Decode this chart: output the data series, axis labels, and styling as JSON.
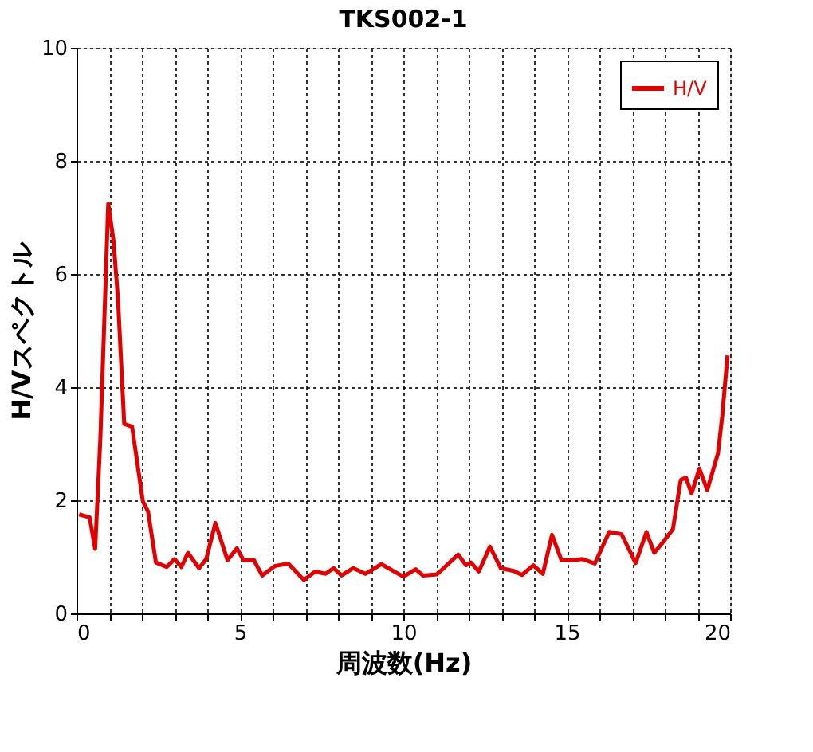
{
  "chart_data": {
    "type": "line",
    "title": "TKS002-1",
    "xlabel": "周波数(Hz)",
    "ylabel": "H/Vスペクトル",
    "x": [
      0.08,
      0.4,
      0.57,
      0.73,
      0.97,
      1.13,
      1.27,
      1.46,
      1.7,
      2.03,
      2.19,
      2.43,
      2.76,
      3.0,
      3.21,
      3.41,
      3.75,
      3.97,
      4.25,
      4.62,
      4.91,
      5.11,
      5.43,
      5.68,
      6.08,
      6.48,
      6.96,
      7.3,
      7.62,
      7.87,
      8.11,
      8.47,
      8.84,
      9.33,
      10.0,
      10.38,
      10.6,
      11.03,
      11.68,
      11.92,
      12.07,
      12.31,
      12.65,
      12.98,
      13.38,
      13.63,
      13.98,
      14.27,
      14.55,
      14.84,
      15.17,
      15.49,
      15.86,
      16.3,
      16.68,
      17.11,
      17.44,
      17.68,
      17.92,
      18.25,
      18.49,
      18.65,
      18.82,
      19.06,
      19.3,
      19.63,
      19.76,
      19.92
    ],
    "series": [
      {
        "name": "H/V",
        "color": "#e00000",
        "values": [
          1.75,
          1.7,
          1.14,
          3.1,
          7.24,
          6.6,
          5.55,
          3.35,
          3.3,
          1.98,
          1.8,
          0.9,
          0.82,
          0.96,
          0.82,
          1.07,
          0.8,
          0.96,
          1.6,
          0.94,
          1.15,
          0.94,
          0.94,
          0.67,
          0.84,
          0.88,
          0.59,
          0.74,
          0.7,
          0.8,
          0.67,
          0.8,
          0.7,
          0.87,
          0.65,
          0.78,
          0.67,
          0.69,
          1.04,
          0.85,
          0.9,
          0.74,
          1.18,
          0.8,
          0.75,
          0.68,
          0.85,
          0.7,
          1.39,
          0.94,
          0.94,
          0.96,
          0.88,
          1.44,
          1.4,
          0.89,
          1.44,
          1.07,
          1.24,
          1.49,
          2.36,
          2.4,
          2.12,
          2.56,
          2.18,
          2.83,
          3.49,
          4.56
        ]
      }
    ],
    "xlim": [
      0,
      20
    ],
    "ylim": [
      0,
      10
    ],
    "xticks": [
      0,
      {
        "value": 1,
        "label": null
      },
      {
        "value": 2,
        "label": null
      },
      {
        "value": 3,
        "label": null
      },
      {
        "value": 4,
        "label": null
      },
      5,
      {
        "value": 6,
        "label": null
      },
      {
        "value": 7,
        "label": null
      },
      {
        "value": 8,
        "label": null
      },
      {
        "value": 9,
        "label": null
      },
      10,
      {
        "value": 11,
        "label": null
      },
      {
        "value": 12,
        "label": null
      },
      {
        "value": 13,
        "label": null
      },
      {
        "value": 14,
        "label": null
      },
      15,
      {
        "value": 16,
        "label": null
      },
      {
        "value": 17,
        "label": null
      },
      {
        "value": 18,
        "label": null
      },
      {
        "value": 19,
        "label": null
      },
      20
    ],
    "yticks": [
      0,
      2,
      4,
      6,
      8,
      10
    ],
    "grid": true,
    "legend": "top right",
    "marker": "none",
    "line_style": "solid"
  }
}
